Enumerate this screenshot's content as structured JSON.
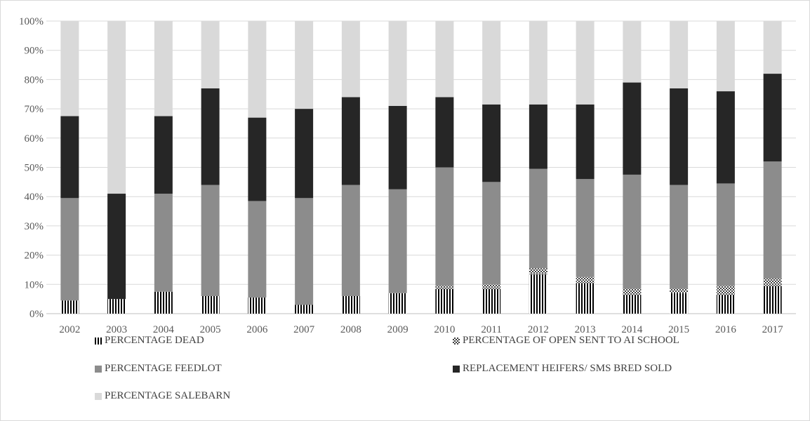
{
  "chart_data": {
    "type": "bar",
    "stacked": true,
    "percent_stacked": true,
    "categories": [
      "2002",
      "2003",
      "2004",
      "2005",
      "2006",
      "2007",
      "2008",
      "2009",
      "2010",
      "2011",
      "2012",
      "2013",
      "2014",
      "2015",
      "2016",
      "2017"
    ],
    "series": [
      {
        "name": "PERCENTAGE DEAD",
        "color": "#000000",
        "pattern": "vertical-stripes",
        "values": [
          4.5,
          5,
          7.5,
          6,
          5.5,
          3,
          6,
          7,
          8.5,
          8.5,
          13.5,
          10.5,
          6.5,
          7,
          6.5,
          9.5
        ]
      },
      {
        "name": "PERCENTAGE OF OPEN SENT TO AI SCHOOL",
        "color": "#404040",
        "pattern": "checker",
        "values": [
          0,
          0,
          0,
          0,
          0,
          0,
          0,
          0,
          1,
          1.5,
          2,
          2,
          2,
          1.5,
          3,
          2.5
        ]
      },
      {
        "name": "PERCENTAGE FEEDLOT",
        "color": "#8c8c8c",
        "pattern": "solid",
        "values": [
          35,
          0,
          33.5,
          38,
          33,
          36.5,
          38,
          35.5,
          40.5,
          35,
          34,
          33.5,
          39,
          35.5,
          35,
          40
        ]
      },
      {
        "name": "REPLACEMENT HEIFERS/ SMS BRED SOLD",
        "color": "#262626",
        "pattern": "solid",
        "values": [
          28,
          36,
          26.5,
          33,
          28.5,
          30.5,
          30,
          28.5,
          24,
          26.5,
          22,
          25.5,
          31.5,
          33,
          31.5,
          30
        ]
      },
      {
        "name": "PERCENTAGE SALEBARN",
        "color": "#d9d9d9",
        "pattern": "solid",
        "values": [
          32.5,
          59,
          32.5,
          23,
          33,
          30,
          26,
          29,
          26,
          28.5,
          28.5,
          28.5,
          21,
          23,
          24,
          18
        ]
      }
    ],
    "ylim": [
      0,
      100
    ],
    "y_ticks": [
      "0%",
      "10%",
      "20%",
      "30%",
      "40%",
      "50%",
      "60%",
      "70%",
      "80%",
      "90%",
      "100%"
    ],
    "grid": true,
    "legend_position": "bottom"
  }
}
